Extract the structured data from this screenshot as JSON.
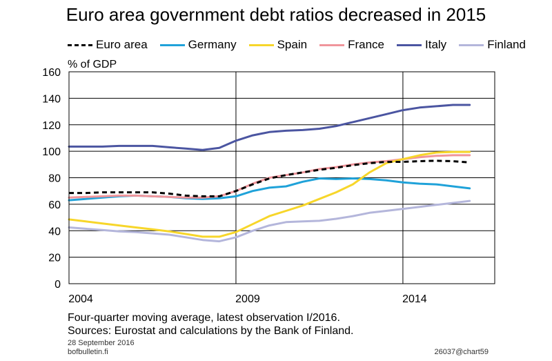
{
  "chart_data": {
    "type": "line",
    "title": "Euro area government debt ratios decreased in 2015",
    "ylabel": "% of GDP",
    "xlabel": "",
    "ylim": [
      0,
      160
    ],
    "xlim": [
      2004,
      2016.75
    ],
    "y_ticks": [
      "0",
      "20",
      "40",
      "60",
      "80",
      "100",
      "120",
      "140",
      "160"
    ],
    "x_tick_labels": [
      {
        "x": 2004,
        "label": "2004"
      },
      {
        "x": 2009,
        "label": "2009"
      },
      {
        "x": 2014,
        "label": "2014"
      }
    ],
    "vertical_gridlines_at": [
      2009,
      2014
    ],
    "grid": "horizontal",
    "legend_position": "top",
    "series": [
      {
        "name": "Euro area",
        "color": "#000000",
        "style": "dashed",
        "x": [
          2004.0,
          2004.5,
          2005.0,
          2005.5,
          2006.0,
          2006.5,
          2007.0,
          2007.5,
          2008.0,
          2008.5,
          2009.0,
          2009.5,
          2010.0,
          2010.5,
          2011.0,
          2011.5,
          2012.0,
          2012.5,
          2013.0,
          2013.5,
          2014.0,
          2014.5,
          2015.0,
          2015.5,
          2016.0
        ],
        "values": [
          68.5,
          68.5,
          69.0,
          69.0,
          69.0,
          69.0,
          68.0,
          66.5,
          66.0,
          66.0,
          70.0,
          75.0,
          79.5,
          82.0,
          84.0,
          86.0,
          87.5,
          89.5,
          91.0,
          92.0,
          92.0,
          92.5,
          92.8,
          92.5,
          91.5
        ]
      },
      {
        "name": "Germany",
        "color": "#1fa2d9",
        "style": "solid",
        "x": [
          2004.0,
          2004.5,
          2005.0,
          2005.5,
          2006.0,
          2006.5,
          2007.0,
          2007.5,
          2008.0,
          2008.5,
          2009.0,
          2009.5,
          2010.0,
          2010.5,
          2011.0,
          2011.5,
          2012.0,
          2012.5,
          2013.0,
          2013.5,
          2014.0,
          2014.5,
          2015.0,
          2015.5,
          2016.0
        ],
        "values": [
          63.0,
          64.0,
          65.0,
          66.0,
          66.5,
          66.0,
          65.5,
          64.5,
          64.0,
          64.5,
          66.0,
          70.0,
          72.5,
          73.5,
          77.0,
          79.5,
          79.0,
          79.5,
          79.0,
          78.0,
          76.5,
          75.5,
          75.0,
          73.5,
          72.0
        ]
      },
      {
        "name": "Spain",
        "color": "#f7d62a",
        "style": "solid",
        "x": [
          2004.0,
          2004.5,
          2005.0,
          2005.5,
          2006.0,
          2006.5,
          2007.0,
          2007.5,
          2008.0,
          2008.5,
          2009.0,
          2009.5,
          2010.0,
          2010.5,
          2011.0,
          2011.5,
          2012.0,
          2012.5,
          2013.0,
          2013.5,
          2014.0,
          2014.5,
          2015.0,
          2015.5,
          2016.0
        ],
        "values": [
          48.5,
          47.0,
          45.5,
          44.0,
          42.5,
          41.0,
          39.5,
          37.5,
          35.5,
          35.5,
          39.0,
          45.0,
          51.0,
          55.0,
          59.0,
          64.0,
          69.0,
          75.0,
          84.0,
          91.0,
          94.0,
          97.0,
          99.0,
          99.5,
          99.5
        ]
      },
      {
        "name": "France",
        "color": "#f0959b",
        "style": "solid",
        "x": [
          2004.0,
          2004.5,
          2005.0,
          2005.5,
          2006.0,
          2006.5,
          2007.0,
          2007.5,
          2008.0,
          2008.5,
          2009.0,
          2009.5,
          2010.0,
          2010.5,
          2011.0,
          2011.5,
          2012.0,
          2012.5,
          2013.0,
          2013.5,
          2014.0,
          2014.5,
          2015.0,
          2015.5,
          2016.0
        ],
        "values": [
          65.0,
          65.5,
          66.0,
          66.5,
          66.5,
          66.0,
          65.5,
          65.0,
          65.0,
          66.0,
          70.0,
          75.5,
          80.0,
          82.0,
          84.0,
          86.5,
          88.0,
          90.0,
          91.5,
          92.5,
          94.0,
          95.5,
          96.5,
          97.0,
          97.0
        ]
      },
      {
        "name": "Italy",
        "color": "#4b55a1",
        "style": "solid",
        "x": [
          2004.0,
          2004.5,
          2005.0,
          2005.5,
          2006.0,
          2006.5,
          2007.0,
          2007.5,
          2008.0,
          2008.5,
          2009.0,
          2009.5,
          2010.0,
          2010.5,
          2011.0,
          2011.5,
          2012.0,
          2012.5,
          2013.0,
          2013.5,
          2014.0,
          2014.5,
          2015.0,
          2015.5,
          2016.0
        ],
        "values": [
          103.5,
          103.5,
          103.5,
          104.0,
          104.0,
          104.0,
          103.0,
          102.0,
          101.0,
          102.5,
          108.0,
          112.0,
          114.5,
          115.5,
          116.0,
          117.0,
          119.0,
          122.0,
          125.0,
          128.0,
          131.0,
          133.0,
          134.0,
          135.0,
          135.0
        ]
      },
      {
        "name": "Finland",
        "color": "#b4b6db",
        "style": "solid",
        "x": [
          2004.0,
          2004.5,
          2005.0,
          2005.5,
          2006.0,
          2006.5,
          2007.0,
          2007.5,
          2008.0,
          2008.5,
          2009.0,
          2009.5,
          2010.0,
          2010.5,
          2011.0,
          2011.5,
          2012.0,
          2012.5,
          2013.0,
          2013.5,
          2014.0,
          2014.5,
          2015.0,
          2015.5,
          2016.0
        ],
        "values": [
          42.5,
          41.5,
          40.5,
          39.5,
          39.0,
          38.0,
          37.0,
          35.0,
          33.0,
          32.0,
          35.0,
          40.0,
          44.0,
          46.5,
          47.0,
          47.5,
          49.0,
          51.0,
          53.5,
          55.0,
          56.5,
          58.0,
          59.5,
          61.0,
          62.5
        ]
      }
    ]
  },
  "footer": {
    "note1": "Four-quarter moving average, latest observation I/2016.",
    "note2": "Sources: Eurostat and calculations by the Bank of Finland.",
    "date": "28 September 2016",
    "site": "bofbulletin.fi",
    "code": "26037@chart59"
  }
}
